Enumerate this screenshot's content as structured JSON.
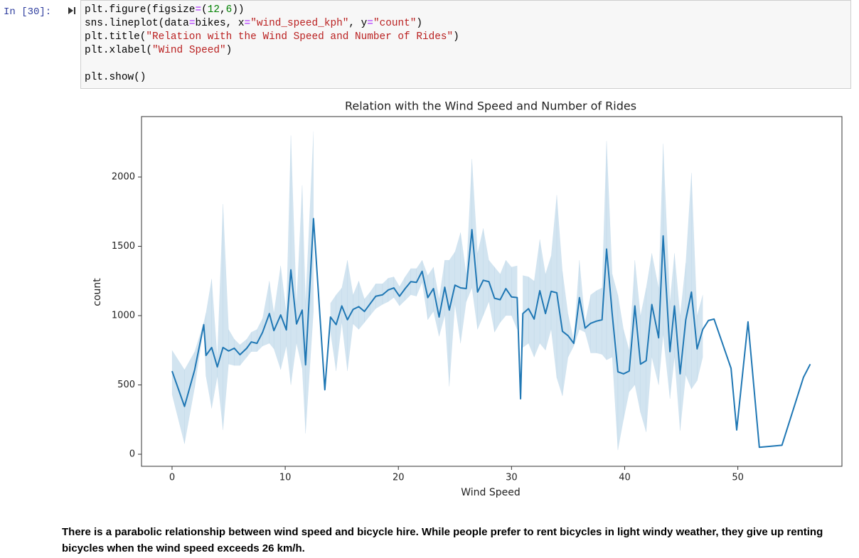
{
  "cell": {
    "prompt": "In [30]:",
    "lines": [
      [
        {
          "t": "plt.figure(figsize",
          "c": "plain"
        },
        {
          "t": "=",
          "c": "op"
        },
        {
          "t": "(",
          "c": "plain"
        },
        {
          "t": "12",
          "c": "num"
        },
        {
          "t": ",",
          "c": "plain"
        },
        {
          "t": "6",
          "c": "num"
        },
        {
          "t": "))",
          "c": "plain"
        }
      ],
      [
        {
          "t": "sns.lineplot(data",
          "c": "plain"
        },
        {
          "t": "=",
          "c": "op"
        },
        {
          "t": "bikes, x",
          "c": "plain"
        },
        {
          "t": "=",
          "c": "op"
        },
        {
          "t": "\"wind_speed_kph\"",
          "c": "str"
        },
        {
          "t": ", y",
          "c": "plain"
        },
        {
          "t": "=",
          "c": "op"
        },
        {
          "t": "\"count\"",
          "c": "str"
        },
        {
          "t": ")",
          "c": "plain"
        }
      ],
      [
        {
          "t": "plt.title(",
          "c": "plain"
        },
        {
          "t": "\"Relation with the Wind Speed and Number of Rides\"",
          "c": "str"
        },
        {
          "t": ")",
          "c": "plain"
        }
      ],
      [
        {
          "t": "plt.xlabel(",
          "c": "plain"
        },
        {
          "t": "\"Wind Speed\"",
          "c": "str"
        },
        {
          "t": ")",
          "c": "plain"
        }
      ],
      [
        {
          "t": "plt.show()",
          "c": "plain"
        }
      ]
    ]
  },
  "chart_data": {
    "type": "line",
    "title": "Relation with the Wind Speed and Number of Rides",
    "xlabel": "Wind Speed",
    "ylabel": "count",
    "color": "#1f77b4",
    "xlim": [
      -2.7,
      59.2
    ],
    "ylim": [
      -87,
      2436
    ],
    "xticks": [
      0,
      10,
      20,
      30,
      40,
      50
    ],
    "yticks": [
      0,
      500,
      1000,
      1500,
      2000
    ],
    "x": [
      0,
      1.1,
      2,
      2.8,
      3.0,
      3.5,
      4.0,
      4.5,
      5.0,
      5.5,
      6.0,
      6.6,
      7.0,
      7.5,
      8.0,
      8.6,
      9.0,
      9.6,
      10.1,
      10.5,
      11.0,
      11.5,
      11.8,
      12.5,
      13.5,
      14.0,
      14.5,
      15.0,
      15.5,
      16.0,
      16.5,
      17.0,
      17.5,
      18.0,
      18.6,
      19.1,
      19.6,
      20.1,
      20.6,
      21.1,
      21.6,
      22.1,
      22.6,
      23.1,
      23.6,
      24.1,
      24.5,
      25.0,
      25.5,
      26.0,
      26.5,
      27.0,
      27.5,
      28.0,
      28.5,
      29.0,
      29.5,
      30.0,
      30.5,
      30.8,
      31.0,
      31.5,
      32.0,
      32.5,
      33.0,
      33.5,
      34.0,
      34.5,
      35.0,
      35.5,
      36.0,
      36.5,
      37.0,
      37.5,
      38.0,
      38.4,
      38.9,
      39.4,
      39.9,
      40.4,
      40.9,
      41.4,
      41.9,
      42.4,
      43.0,
      43.4,
      44.0,
      44.4,
      44.9,
      45.4,
      45.9,
      46.4,
      46.9,
      47.4,
      47.9,
      49.4,
      49.9,
      50.9,
      51.9,
      53.9,
      55.8,
      56.4
    ],
    "values": [
      600,
      345,
      610,
      935,
      713,
      770,
      630,
      770,
      745,
      765,
      718,
      765,
      810,
      800,
      880,
      1015,
      892,
      1005,
      897,
      1330,
      940,
      1040,
      645,
      1700,
      465,
      990,
      935,
      1070,
      970,
      1045,
      1065,
      1030,
      1085,
      1140,
      1150,
      1185,
      1200,
      1140,
      1195,
      1245,
      1240,
      1320,
      1130,
      1195,
      990,
      1205,
      1040,
      1220,
      1200,
      1195,
      1620,
      1170,
      1255,
      1245,
      1125,
      1115,
      1195,
      1135,
      1130,
      400,
      1015,
      1050,
      975,
      1180,
      1015,
      1175,
      1165,
      887,
      855,
      800,
      1130,
      910,
      945,
      960,
      970,
      1480,
      1010,
      595,
      580,
      600,
      1070,
      650,
      675,
      1080,
      840,
      1575,
      740,
      1070,
      580,
      970,
      1170,
      760,
      900,
      965,
      975,
      620,
      175,
      955,
      50,
      65,
      555,
      650
    ],
    "ci_lower": [
      430,
      75,
      480,
      920,
      560,
      330,
      560,
      175,
      650,
      640,
      640,
      700,
      740,
      740,
      780,
      800,
      760,
      610,
      780,
      500,
      800,
      620,
      150,
      1030,
      null,
      880,
      600,
      950,
      600,
      940,
      900,
      950,
      1000,
      1050,
      1080,
      1100,
      1130,
      1070,
      1110,
      1150,
      1140,
      1240,
      970,
      1030,
      850,
      1000,
      490,
      1080,
      800,
      1100,
      1200,
      900,
      1000,
      1100,
      880,
      950,
      1000,
      1000,
      900,
      null,
      770,
      800,
      700,
      800,
      750,
      900,
      550,
      420,
      700,
      780,
      900,
      880,
      730,
      730,
      720,
      680,
      700,
      30,
      250,
      450,
      500,
      300,
      160,
      700,
      500,
      860,
      400,
      700,
      170,
      570,
      470,
      530,
      700,
      null,
      null,
      null,
      null,
      null,
      null,
      null,
      null,
      null
    ],
    "ci_upper": [
      750,
      610,
      740,
      950,
      1020,
      1265,
      700,
      1805,
      900,
      830,
      790,
      830,
      880,
      900,
      980,
      1250,
      1020,
      1360,
      1020,
      2300,
      1080,
      1940,
      1100,
      2330,
      null,
      1090,
      1150,
      1200,
      1400,
      1150,
      1250,
      1120,
      1170,
      1230,
      1230,
      1270,
      1280,
      1210,
      1280,
      1340,
      1340,
      1400,
      1290,
      1350,
      1120,
      1400,
      1400,
      1460,
      1600,
      1300,
      2130,
      1450,
      1630,
      1400,
      1350,
      1300,
      1400,
      1350,
      1360,
      null,
      1290,
      1280,
      1250,
      1550,
      1300,
      1430,
      1870,
      1320,
      1010,
      820,
      1400,
      950,
      1150,
      1180,
      1200,
      2260,
      1300,
      1150,
      900,
      750,
      1400,
      1000,
      1200,
      1450,
      1200,
      2240,
      1100,
      1450,
      1000,
      1380,
      2030,
      1000,
      1150,
      null,
      null,
      null,
      null,
      null,
      null,
      null,
      null,
      null
    ]
  },
  "note": "There is a parabolic relationship between wind speed and bicycle hire. While people prefer to rent bicycles in light windy weather, they give up renting bicycles when the wind speed exceeds 26 km/h."
}
